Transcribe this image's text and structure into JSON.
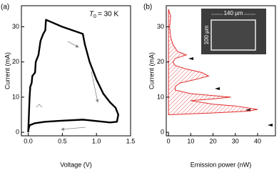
{
  "chart_data": [
    {
      "type": "line",
      "panel_label": "(a)",
      "x_label": "Voltage (V)",
      "y_label": "Current (mA)",
      "annotation": {
        "symbol": "T",
        "subscript": "0",
        "text": "= 30 K"
      },
      "xlim": [
        -0.1,
        1.5
      ],
      "ylim": [
        -1,
        36
      ],
      "xticks": [
        {
          "value": 0,
          "label": "0.0"
        },
        0.5,
        {
          "value": 1,
          "label": "1.0"
        },
        1.5
      ],
      "yticks": [
        0,
        10,
        20,
        30
      ],
      "series": [
        {
          "color": "#000000",
          "x": [
            0.0,
            0.01,
            0.02,
            0.03,
            0.05,
            0.06,
            0.1,
            0.11,
            0.15,
            0.18,
            0.22,
            0.25,
            0.26,
            0.5,
            0.8,
            0.83,
            0.9,
            1.0,
            1.1,
            1.2,
            1.28,
            1.32,
            1.3,
            1.2,
            1.1,
            0.8,
            0.5,
            0.25,
            0.1,
            0.02,
            0.0
          ],
          "y": [
            0,
            5,
            10,
            13,
            14,
            16,
            17,
            20,
            22,
            26,
            28,
            29,
            32,
            30,
            28,
            25,
            20,
            15,
            11,
            8.5,
            7,
            5,
            3,
            2.8,
            3.0,
            3.6,
            3.3,
            3.0,
            2.6,
            2.0,
            0.5
          ]
        }
      ]
    },
    {
      "type": "area",
      "panel_label": "(b)",
      "x_label": "Emission power (nW)",
      "y_label": "Current (mA)",
      "inset": {
        "width_label": "140 µm",
        "height_label": "100 µm"
      },
      "xlim": [
        -1,
        48
      ],
      "ylim": [
        -1,
        36
      ],
      "xticks": [
        0,
        10,
        20,
        30,
        40
      ],
      "yticks": [
        0,
        10,
        20,
        30
      ],
      "series": [
        {
          "color": "#e03030",
          "x": [
            0,
            20,
            35,
            40,
            30,
            20,
            10,
            20,
            28,
            10,
            3,
            3,
            5,
            12,
            18,
            15,
            8,
            3,
            2,
            3,
            8,
            4,
            2,
            1,
            0.5,
            1,
            0
          ],
          "y": [
            5,
            5.5,
            6,
            6.5,
            7.5,
            8,
            9,
            9.5,
            10,
            11,
            12,
            13,
            14,
            15,
            16,
            17,
            18,
            19,
            20,
            21,
            22,
            23,
            25,
            27,
            30,
            33,
            35
          ]
        }
      ]
    }
  ]
}
